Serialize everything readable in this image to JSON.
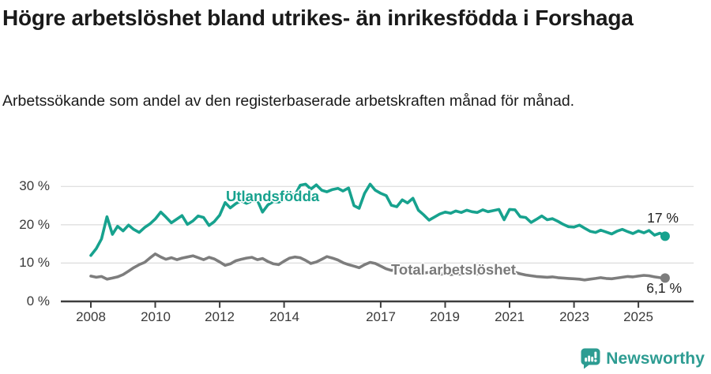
{
  "title": "Högre arbetslöshet bland utrikes- än inrikesfödda i Forshaga",
  "subtitle": "Arbetssökande som andel av den registerbaserade arbetskraften månad för månad.",
  "footer": {
    "brand": "Newsworthy",
    "icon": "speech-bubble-bar-chart-icon",
    "brand_color": "#2d9c92"
  },
  "colors": {
    "utlandsfodda_line": "#17a28e",
    "total_line": "#7d7d7d",
    "gridline": "#dcdcdc",
    "axis": "#3d3d3d",
    "tick_text": "#3a3a3a",
    "title_text": "#1a1a1a"
  },
  "chart_data": {
    "type": "line",
    "title": "Högre arbetslöshet bland utrikes- än inrikesfödda i Forshaga",
    "xlabel": "",
    "ylabel": "",
    "ylim": [
      0,
      32
    ],
    "xlim": [
      2007.6,
      2026.4
    ],
    "grid": "horizontal",
    "legend_position": "inline-labels-on-lines",
    "y_axis": {
      "tick_values": [
        0,
        10,
        20,
        30
      ],
      "tick_labels": [
        "0 %",
        "10 %",
        "20 %",
        "30 %"
      ]
    },
    "x_axis": {
      "tick_years": [
        2008,
        2010,
        2012,
        2014,
        2017,
        2019,
        2021,
        2023,
        2025
      ],
      "tick_labels": [
        "2008",
        "2010",
        "2012",
        "2014",
        "2017",
        "2019",
        "2021",
        "2023",
        "2025"
      ]
    },
    "x": [
      2008.0,
      2008.17,
      2008.33,
      2008.5,
      2008.67,
      2008.83,
      2009.0,
      2009.17,
      2009.33,
      2009.5,
      2009.67,
      2009.83,
      2010.0,
      2010.17,
      2010.33,
      2010.5,
      2010.67,
      2010.83,
      2011.0,
      2011.17,
      2011.33,
      2011.5,
      2011.67,
      2011.83,
      2012.0,
      2012.17,
      2012.33,
      2012.5,
      2012.67,
      2012.83,
      2013.0,
      2013.17,
      2013.33,
      2013.5,
      2013.67,
      2013.83,
      2014.0,
      2014.17,
      2014.33,
      2014.5,
      2014.67,
      2014.83,
      2015.0,
      2015.17,
      2015.33,
      2015.5,
      2015.67,
      2015.83,
      2016.0,
      2016.17,
      2016.33,
      2016.5,
      2016.67,
      2016.83,
      2017.0,
      2017.17,
      2017.33,
      2017.5,
      2017.67,
      2017.83,
      2018.0,
      2018.17,
      2018.33,
      2018.5,
      2018.67,
      2018.83,
      2019.0,
      2019.17,
      2019.33,
      2019.5,
      2019.67,
      2019.83,
      2020.0,
      2020.17,
      2020.33,
      2020.5,
      2020.67,
      2020.83,
      2021.0,
      2021.17,
      2021.33,
      2021.5,
      2021.67,
      2021.83,
      2022.0,
      2022.17,
      2022.33,
      2022.5,
      2022.67,
      2022.83,
      2023.0,
      2023.17,
      2023.33,
      2023.5,
      2023.67,
      2023.83,
      2024.0,
      2024.17,
      2024.33,
      2024.5,
      2024.67,
      2024.83,
      2025.0,
      2025.17,
      2025.33,
      2025.5,
      2025.67,
      2025.83
    ],
    "series": [
      {
        "name": "Utlandsfödda",
        "color": "#17a28e",
        "end_label": "17 %",
        "end_value": 17.0,
        "values": [
          12.0,
          13.8,
          16.3,
          22.1,
          17.5,
          19.6,
          18.4,
          19.9,
          18.8,
          18.0,
          19.3,
          20.2,
          21.5,
          23.3,
          22.0,
          20.5,
          21.5,
          22.4,
          20.1,
          21.0,
          22.3,
          21.9,
          19.8,
          20.8,
          22.5,
          25.8,
          24.4,
          25.5,
          26.3,
          25.6,
          26.2,
          26.4,
          23.3,
          25.2,
          26.1,
          25.9,
          26.6,
          28.2,
          27.6,
          30.3,
          30.6,
          29.3,
          30.4,
          29.0,
          28.6,
          29.2,
          29.5,
          28.8,
          29.6,
          25.0,
          24.3,
          28.2,
          30.6,
          29.0,
          28.2,
          27.6,
          25.1,
          24.7,
          26.5,
          25.7,
          26.9,
          23.8,
          22.6,
          21.2,
          22.0,
          22.8,
          23.3,
          23.0,
          23.6,
          23.2,
          23.8,
          23.4,
          23.2,
          23.9,
          23.4,
          23.7,
          24.0,
          21.3,
          24.0,
          23.9,
          22.1,
          21.9,
          20.6,
          21.4,
          22.3,
          21.3,
          21.6,
          20.9,
          20.1,
          19.5,
          19.4,
          19.9,
          19.1,
          18.3,
          18.0,
          18.6,
          18.1,
          17.6,
          18.3,
          18.8,
          18.2,
          17.7,
          18.4,
          17.9,
          18.5,
          17.3,
          17.8,
          17.0
        ]
      },
      {
        "name": "Total arbetslöshet",
        "color": "#7d7d7d",
        "end_label": "6,1 %",
        "end_value": 6.1,
        "values": [
          6.6,
          6.3,
          6.5,
          5.8,
          6.1,
          6.4,
          7.0,
          7.9,
          8.8,
          9.6,
          10.2,
          11.3,
          12.4,
          11.6,
          11.0,
          11.4,
          10.9,
          11.3,
          11.6,
          11.9,
          11.4,
          10.9,
          11.5,
          11.1,
          10.3,
          9.4,
          9.8,
          10.6,
          11.0,
          11.3,
          11.5,
          10.9,
          11.2,
          10.4,
          9.8,
          9.6,
          10.5,
          11.3,
          11.6,
          11.4,
          10.7,
          9.9,
          10.3,
          11.0,
          11.7,
          11.3,
          10.8,
          10.1,
          9.6,
          9.2,
          8.8,
          9.6,
          10.2,
          9.9,
          9.2,
          8.5,
          8.1,
          8.3,
          8.5,
          8.4,
          8.2,
          7.8,
          7.4,
          7.6,
          7.3,
          7.1,
          7.2,
          7.0,
          7.2,
          7.1,
          7.3,
          7.4,
          7.2,
          7.8,
          8.4,
          8.6,
          8.3,
          8.1,
          7.9,
          7.6,
          7.2,
          6.9,
          6.7,
          6.5,
          6.4,
          6.3,
          6.4,
          6.2,
          6.1,
          6.0,
          5.9,
          5.8,
          5.6,
          5.8,
          6.0,
          6.2,
          6.0,
          5.9,
          6.1,
          6.3,
          6.5,
          6.4,
          6.6,
          6.8,
          6.7,
          6.4,
          6.2,
          6.1
        ]
      }
    ]
  }
}
